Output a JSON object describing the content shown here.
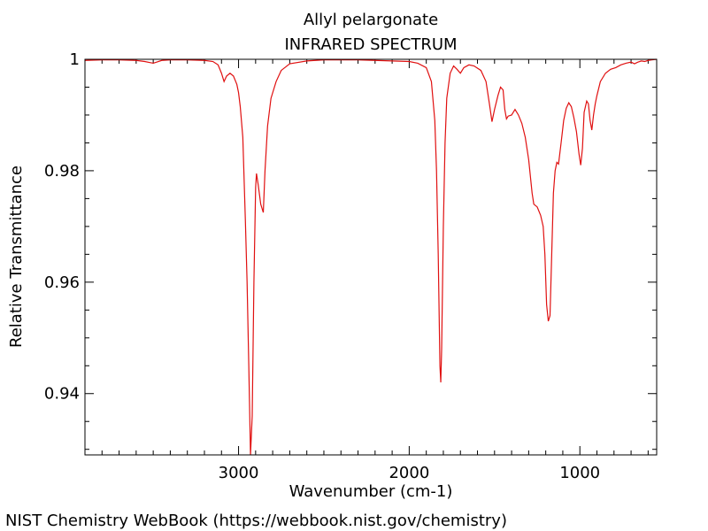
{
  "chart_data": {
    "type": "line",
    "title": "Allyl pelargonate",
    "subtitle": "INFRARED SPECTRUM",
    "xlabel": "Wavenumber (cm-1)",
    "ylabel": "Relative Transmittance",
    "xlim": [
      3900,
      550
    ],
    "ylim": [
      0.929,
      1.0
    ],
    "x_reversed": true,
    "x_ticks": [
      3000,
      2000,
      1000
    ],
    "x_tick_labels": [
      "3000",
      "2000",
      "1000"
    ],
    "y_ticks": [
      0.94,
      0.96,
      0.98,
      1.0
    ],
    "y_tick_labels": [
      "0.94",
      "0.96",
      "0.98",
      "1"
    ],
    "grid": false,
    "series_color": "#e01010",
    "series": [
      {
        "name": "",
        "points": [
          [
            3900,
            0.9998
          ],
          [
            3800,
            0.9999
          ],
          [
            3700,
            0.9999
          ],
          [
            3600,
            0.9998
          ],
          [
            3550,
            0.9996
          ],
          [
            3500,
            0.9993
          ],
          [
            3480,
            0.9995
          ],
          [
            3450,
            0.9998
          ],
          [
            3400,
            0.9999
          ],
          [
            3300,
            0.9999
          ],
          [
            3200,
            0.9998
          ],
          [
            3150,
            0.9996
          ],
          [
            3120,
            0.999
          ],
          [
            3100,
            0.9975
          ],
          [
            3085,
            0.996
          ],
          [
            3070,
            0.997
          ],
          [
            3050,
            0.9975
          ],
          [
            3030,
            0.997
          ],
          [
            3010,
            0.9955
          ],
          [
            3000,
            0.994
          ],
          [
            2990,
            0.9915
          ],
          [
            2975,
            0.986
          ],
          [
            2960,
            0.971
          ],
          [
            2950,
            0.96
          ],
          [
            2940,
            0.945
          ],
          [
            2930,
            0.929
          ],
          [
            2920,
            0.936
          ],
          [
            2910,
            0.96
          ],
          [
            2900,
            0.977
          ],
          [
            2895,
            0.9795
          ],
          [
            2885,
            0.9775
          ],
          [
            2870,
            0.974
          ],
          [
            2855,
            0.9725
          ],
          [
            2845,
            0.98
          ],
          [
            2830,
            0.988
          ],
          [
            2810,
            0.993
          ],
          [
            2780,
            0.996
          ],
          [
            2750,
            0.998
          ],
          [
            2700,
            0.9992
          ],
          [
            2600,
            0.9997
          ],
          [
            2500,
            0.9999
          ],
          [
            2400,
            0.9999
          ],
          [
            2300,
            0.9999
          ],
          [
            2200,
            0.9998
          ],
          [
            2100,
            0.9997
          ],
          [
            2000,
            0.9996
          ],
          [
            1950,
            0.9993
          ],
          [
            1900,
            0.9985
          ],
          [
            1870,
            0.996
          ],
          [
            1850,
            0.989
          ],
          [
            1840,
            0.98
          ],
          [
            1830,
            0.965
          ],
          [
            1820,
            0.945
          ],
          [
            1815,
            0.942
          ],
          [
            1810,
            0.948
          ],
          [
            1800,
            0.97
          ],
          [
            1790,
            0.985
          ],
          [
            1780,
            0.993
          ],
          [
            1760,
            0.9975
          ],
          [
            1740,
            0.9988
          ],
          [
            1720,
            0.9982
          ],
          [
            1700,
            0.9975
          ],
          [
            1680,
            0.9985
          ],
          [
            1650,
            0.999
          ],
          [
            1620,
            0.9988
          ],
          [
            1580,
            0.998
          ],
          [
            1550,
            0.996
          ],
          [
            1530,
            0.992
          ],
          [
            1515,
            0.9888
          ],
          [
            1500,
            0.991
          ],
          [
            1480,
            0.9935
          ],
          [
            1465,
            0.995
          ],
          [
            1450,
            0.9945
          ],
          [
            1440,
            0.991
          ],
          [
            1430,
            0.9893
          ],
          [
            1420,
            0.9898
          ],
          [
            1400,
            0.99
          ],
          [
            1380,
            0.991
          ],
          [
            1360,
            0.99
          ],
          [
            1340,
            0.9885
          ],
          [
            1320,
            0.986
          ],
          [
            1300,
            0.982
          ],
          [
            1280,
            0.976
          ],
          [
            1270,
            0.974
          ],
          [
            1250,
            0.9735
          ],
          [
            1230,
            0.972
          ],
          [
            1215,
            0.97
          ],
          [
            1205,
            0.965
          ],
          [
            1195,
            0.956
          ],
          [
            1185,
            0.953
          ],
          [
            1175,
            0.954
          ],
          [
            1165,
            0.965
          ],
          [
            1155,
            0.976
          ],
          [
            1145,
            0.98
          ],
          [
            1135,
            0.9815
          ],
          [
            1125,
            0.9812
          ],
          [
            1110,
            0.985
          ],
          [
            1095,
            0.989
          ],
          [
            1080,
            0.9912
          ],
          [
            1065,
            0.9922
          ],
          [
            1050,
            0.9915
          ],
          [
            1035,
            0.9895
          ],
          [
            1020,
            0.987
          ],
          [
            1005,
            0.983
          ],
          [
            995,
            0.981
          ],
          [
            985,
            0.984
          ],
          [
            975,
            0.9905
          ],
          [
            960,
            0.9925
          ],
          [
            950,
            0.992
          ],
          [
            940,
            0.989
          ],
          [
            930,
            0.9873
          ],
          [
            920,
            0.99
          ],
          [
            910,
            0.992
          ],
          [
            900,
            0.9935
          ],
          [
            880,
            0.996
          ],
          [
            850,
            0.9975
          ],
          [
            820,
            0.9982
          ],
          [
            790,
            0.9985
          ],
          [
            760,
            0.999
          ],
          [
            730,
            0.9993
          ],
          [
            700,
            0.9995
          ],
          [
            680,
            0.9992
          ],
          [
            660,
            0.9995
          ],
          [
            640,
            0.9997
          ],
          [
            620,
            0.9996
          ],
          [
            600,
            0.9998
          ],
          [
            580,
            0.9999
          ],
          [
            550,
            1.0
          ]
        ]
      }
    ]
  },
  "footer": {
    "credit": "NIST Chemistry WebBook (https://webbook.nist.gov/chemistry)"
  }
}
